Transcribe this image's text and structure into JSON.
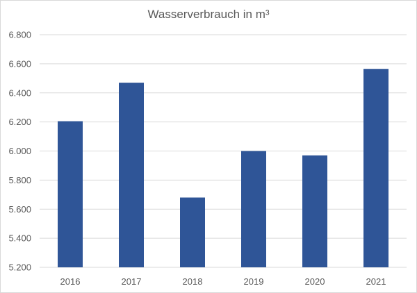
{
  "chart_data": {
    "type": "bar",
    "title": "Wasserverbrauch  in m³",
    "categories": [
      "2016",
      "2017",
      "2018",
      "2019",
      "2020",
      "2021"
    ],
    "values": [
      6205,
      6470,
      5680,
      6000,
      5970,
      6565
    ],
    "ylim": [
      5200,
      6800
    ],
    "yticks": [
      5200,
      5400,
      5600,
      5800,
      6000,
      6200,
      6400,
      6600,
      6800
    ],
    "ytick_labels": [
      "5.200",
      "5.400",
      "5.600",
      "5.800",
      "6.000",
      "6.200",
      "6.400",
      "6.600",
      "6.800"
    ],
    "xlabel": "",
    "ylabel": "",
    "grid": true,
    "legend": "none",
    "colors": {
      "bar": "#2F5597",
      "grid": "#d9d9d9",
      "text": "#595959"
    }
  }
}
